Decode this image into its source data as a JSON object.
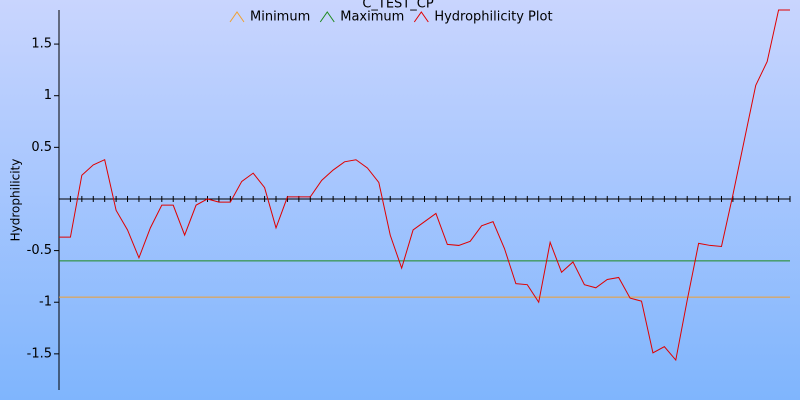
{
  "chart_data": {
    "type": "line",
    "title": "C_TEST_CP",
    "y_label": "Hydrophilicity",
    "ylim": [
      -1.85,
      1.83
    ],
    "yticks": [
      -1.5,
      -1,
      -0.5,
      0.5,
      1,
      1.5
    ],
    "reference_lines": [
      {
        "name": "Minimum",
        "color": "#f0a030",
        "value": -0.95
      },
      {
        "name": "Maximum",
        "color": "#1e8a1e",
        "value": -0.6
      }
    ],
    "series": [
      {
        "name": "Hydrophilicity Plot",
        "color": "#e00000",
        "values": [
          -0.37,
          -0.37,
          0.23,
          0.33,
          0.38,
          -0.11,
          -0.3,
          -0.57,
          -0.28,
          -0.06,
          -0.06,
          -0.35,
          -0.06,
          0.0,
          -0.03,
          -0.03,
          0.17,
          0.25,
          0.11,
          -0.28,
          0.02,
          0.02,
          0.02,
          0.18,
          0.28,
          0.36,
          0.38,
          0.3,
          0.16,
          -0.35,
          -0.67,
          -0.3,
          -0.22,
          -0.14,
          -0.44,
          -0.45,
          -0.41,
          -0.26,
          -0.22,
          -0.48,
          -0.82,
          -0.83,
          -1.0,
          -0.42,
          -0.71,
          -0.61,
          -0.83,
          -0.86,
          -0.78,
          -0.76,
          -0.96,
          -0.99,
          -1.49,
          -1.43,
          -1.56,
          -0.98,
          -0.43,
          -0.45,
          -0.46,
          0.04,
          0.57,
          1.1,
          1.33,
          1.83,
          1.83
        ]
      }
    ]
  }
}
